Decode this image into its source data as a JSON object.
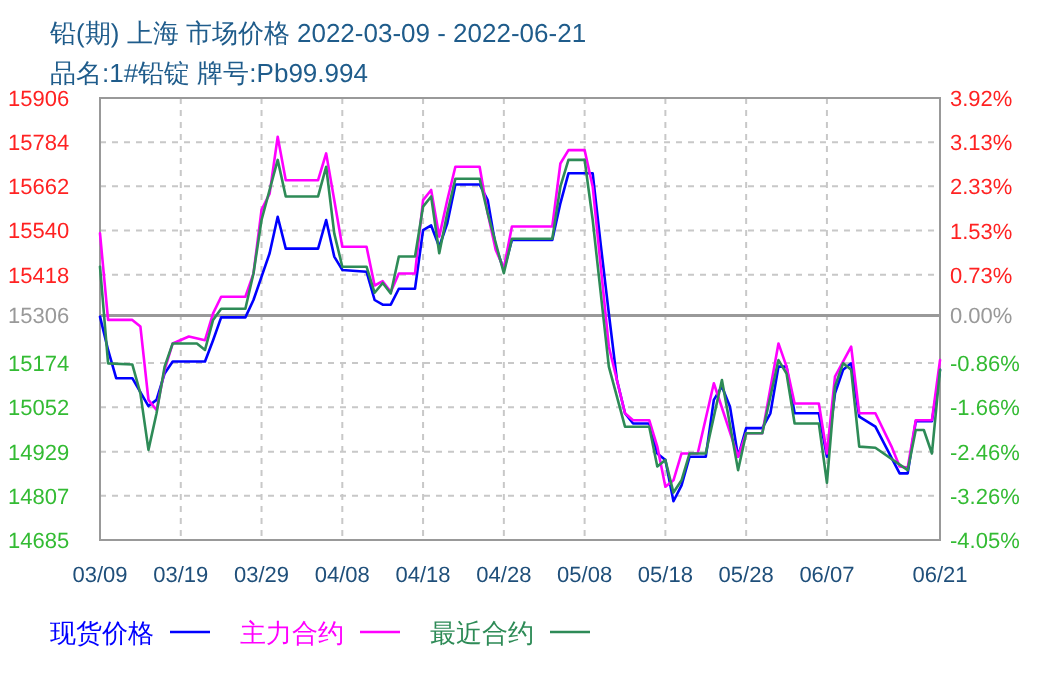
{
  "chart_data": {
    "type": "line",
    "title": "铅(期) 上海 市场价格 2022-03-09 - 2022-06-21",
    "subtitle": "品名:1#铅锭 牌号:Pb99.994",
    "xlim": [
      "--03-09",
      "--06-21"
    ],
    "xticks": [
      {
        "value": "--03-09",
        "label": "03/09"
      },
      {
        "value": "--03-19",
        "label": "03/19"
      },
      {
        "value": "--03-29",
        "label": "03/29"
      },
      {
        "value": "--04-08",
        "label": "04/08"
      },
      {
        "value": "--04-18",
        "label": "04/18"
      },
      {
        "value": "--04-28",
        "label": "04/28"
      },
      {
        "value": "--05-08",
        "label": "05/08"
      },
      {
        "value": "--05-18",
        "label": "05/18"
      },
      {
        "value": "--05-28",
        "label": "05/28"
      },
      {
        "value": "--06-07",
        "label": "06/07"
      },
      {
        "value": "--06-21",
        "label": "06/21"
      }
    ],
    "ylim": [
      14685,
      15906
    ],
    "yticks": [
      15906,
      15784,
      15662,
      15540,
      15418,
      15306,
      15174,
      15052,
      14929,
      14807,
      14685
    ],
    "y2lim": [
      -4.05,
      3.92
    ],
    "y2ticks": [
      {
        "value": 3.92,
        "label": "3.92%"
      },
      {
        "value": 3.13,
        "label": "3.13%"
      },
      {
        "value": 2.33,
        "label": "2.33%"
      },
      {
        "value": 1.53,
        "label": "1.53%"
      },
      {
        "value": 0.73,
        "label": "0.73%"
      },
      {
        "value": 0,
        "label": "0.00%"
      },
      {
        "value": -0.86,
        "label": "-0.86%"
      },
      {
        "value": -1.66,
        "label": "-1.66%"
      },
      {
        "value": -2.46,
        "label": "-2.46%"
      },
      {
        "value": -3.26,
        "label": "-3.26%"
      },
      {
        "value": -4.05,
        "label": "-4.05%"
      }
    ],
    "ref_lines": [
      {
        "axis": "y2",
        "value": 0,
        "color": "#999999"
      }
    ],
    "grid": true,
    "legend": "bottom",
    "line_style": "solid",
    "marker": "none",
    "series": [
      {
        "name": "现货价格",
        "color": "#0000ff",
        "x": [
          "--03-09",
          "--03-10",
          "--03-11",
          "--03-13",
          "--03-15",
          "--03-16",
          "--03-17",
          "--03-18",
          "--03-22",
          "--03-23",
          "--03-24",
          "--03-27",
          "--03-28",
          "--03-30",
          "--03-31",
          "--04-01",
          "--04-05",
          "--04-06",
          "--04-07",
          "--04-08",
          "--04-11",
          "--04-12",
          "--04-13",
          "--04-14",
          "--04-15",
          "--04-17",
          "--04-18",
          "--04-19",
          "--04-20",
          "--04-21",
          "--04-22",
          "--04-25",
          "--04-26",
          "--04-27",
          "--04-28",
          "--04-29",
          "--05-04",
          "--05-05",
          "--05-06",
          "--05-09",
          "--05-10",
          "--05-11",
          "--05-12",
          "--05-13",
          "--05-14",
          "--05-16",
          "--05-17",
          "--05-18",
          "--05-19",
          "--05-20",
          "--05-21",
          "--05-23",
          "--05-24",
          "--05-25",
          "--05-26",
          "--05-27",
          "--05-28",
          "--05-30",
          "--05-31",
          "--06-01",
          "--06-02",
          "--06-03",
          "--06-06",
          "--06-07",
          "--06-08",
          "--06-09",
          "--06-10",
          "--06-11",
          "--06-13",
          "--06-16",
          "--06-17",
          "--06-18",
          "--06-20",
          "--06-21"
        ],
        "values": [
          15302,
          15210,
          15132,
          15132,
          15055,
          15072,
          15145,
          15178,
          15178,
          15237,
          15300,
          15300,
          15348,
          15477,
          15578,
          15490,
          15490,
          15569,
          15468,
          15431,
          15426,
          15348,
          15335,
          15335,
          15379,
          15379,
          15541,
          15554,
          15495,
          15560,
          15667,
          15667,
          15624,
          15495,
          15431,
          15514,
          15514,
          15615,
          15698,
          15698,
          15500,
          15311,
          15127,
          15035,
          15007,
          15007,
          14924,
          14906,
          14792,
          14836,
          14915,
          14915,
          15072,
          15109,
          15053,
          14915,
          14994,
          14994,
          15035,
          15164,
          15164,
          15035,
          15035,
          14915,
          15090,
          15155,
          15173,
          15026,
          14998,
          14869,
          14869,
          15013,
          15013,
          15155
        ]
      },
      {
        "name": "主力合约",
        "color": "#ff00ff",
        "x": [
          "--03-09",
          "--03-10",
          "--03-13",
          "--03-14",
          "--03-15",
          "--03-16",
          "--03-17",
          "--03-18",
          "--03-20",
          "--03-22",
          "--03-23",
          "--03-24",
          "--03-27",
          "--03-28",
          "--03-29",
          "--03-30",
          "--03-31",
          "--04-01",
          "--04-05",
          "--04-06",
          "--04-07",
          "--04-08",
          "--04-11",
          "--04-12",
          "--04-13",
          "--04-14",
          "--04-15",
          "--04-17",
          "--04-18",
          "--04-19",
          "--04-20",
          "--04-21",
          "--04-22",
          "--04-25",
          "--04-26",
          "--04-27",
          "--04-28",
          "--04-29",
          "--05-04",
          "--05-05",
          "--05-06",
          "--05-08",
          "--05-09",
          "--05-10",
          "--05-11",
          "--05-13",
          "--05-14",
          "--05-16",
          "--05-17",
          "--05-18",
          "--05-19",
          "--05-20",
          "--05-22",
          "--05-24",
          "--05-27",
          "--05-28",
          "--05-30",
          "--06-01",
          "--06-02",
          "--06-03",
          "--06-06",
          "--06-07",
          "--06-08",
          "--06-10",
          "--06-11",
          "--06-13",
          "--06-15",
          "--06-16",
          "--06-17",
          "--06-18",
          "--06-20",
          "--06-21"
        ],
        "values": [
          15532,
          15293,
          15293,
          15275,
          15072,
          15044,
          15155,
          15228,
          15247,
          15237,
          15311,
          15357,
          15357,
          15421,
          15597,
          15642,
          15799,
          15679,
          15679,
          15753,
          15624,
          15495,
          15495,
          15388,
          15400,
          15370,
          15421,
          15421,
          15624,
          15652,
          15523,
          15624,
          15716,
          15716,
          15588,
          15486,
          15436,
          15551,
          15551,
          15725,
          15762,
          15762,
          15661,
          15440,
          15219,
          15035,
          15016,
          15016,
          14943,
          14832,
          14850,
          14924,
          14924,
          15118,
          14915,
          14980,
          14980,
          15228,
          15164,
          15062,
          15062,
          14924,
          15136,
          15219,
          15035,
          15035,
          14943,
          14888,
          14885,
          15016,
          15016,
          15182
        ]
      },
      {
        "name": "最近合约",
        "color": "#2e8b57",
        "x": [
          "--03-09",
          "--03-10",
          "--03-13",
          "--03-14",
          "--03-15",
          "--03-16",
          "--03-17",
          "--03-18",
          "--03-21",
          "--03-22",
          "--03-23",
          "--03-24",
          "--03-27",
          "--03-28",
          "--03-29",
          "--03-31",
          "--04-01",
          "--04-05",
          "--04-06",
          "--04-07",
          "--04-08",
          "--04-11",
          "--04-12",
          "--04-13",
          "--04-14",
          "--04-15",
          "--04-17",
          "--04-18",
          "--04-19",
          "--04-20",
          "--04-21",
          "--04-22",
          "--04-25",
          "--04-26",
          "--04-28",
          "--04-29",
          "--05-04",
          "--05-05",
          "--05-06",
          "--05-08",
          "--05-09",
          "--05-10",
          "--05-11",
          "--05-13",
          "--05-16",
          "--05-17",
          "--05-18",
          "--05-19",
          "--05-20",
          "--05-21",
          "--05-23",
          "--05-25",
          "--05-27",
          "--05-28",
          "--05-30",
          "--06-01",
          "--06-02",
          "--06-03",
          "--06-06",
          "--06-07",
          "--06-08",
          "--06-09",
          "--06-10",
          "--06-11",
          "--06-13",
          "--06-17",
          "--06-18",
          "--06-19",
          "--06-20",
          "--06-21"
        ],
        "values": [
          15440,
          15173,
          15170,
          15090,
          14934,
          15035,
          15164,
          15228,
          15228,
          15210,
          15293,
          15324,
          15324,
          15421,
          15569,
          15735,
          15634,
          15634,
          15716,
          15532,
          15440,
          15440,
          15368,
          15395,
          15366,
          15468,
          15468,
          15606,
          15634,
          15477,
          15588,
          15683,
          15683,
          15588,
          15422,
          15517,
          15517,
          15661,
          15735,
          15735,
          15569,
          15366,
          15164,
          14998,
          14998,
          14888,
          14906,
          14816,
          14850,
          14924,
          14924,
          15127,
          14878,
          14980,
          14980,
          15182,
          15145,
          15007,
          15007,
          14843,
          15109,
          15173,
          15155,
          14943,
          14940,
          14878,
          14989,
          14989,
          14924,
          15155
        ]
      }
    ]
  }
}
